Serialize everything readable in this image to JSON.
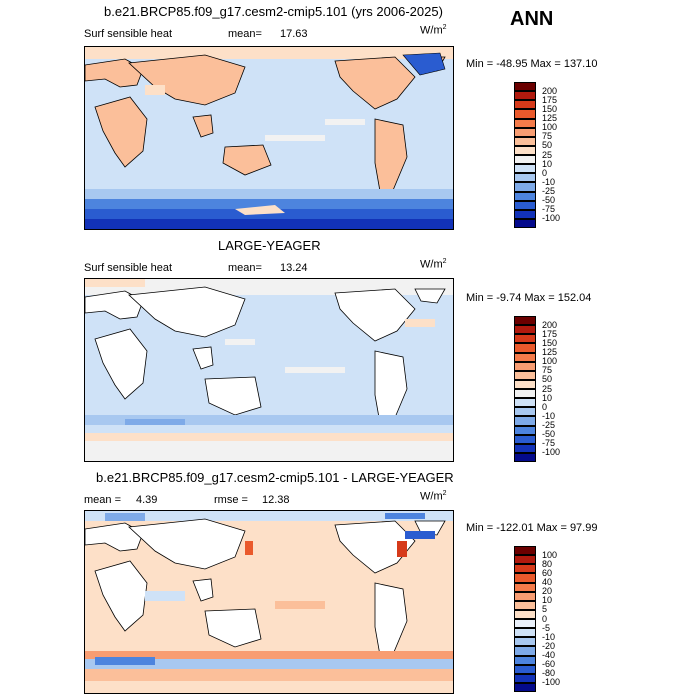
{
  "season": "ANN",
  "units": "W/m",
  "units_exp": "2",
  "panel1": {
    "title": "b.e21.BRCP85.f09_g17.cesm2-cmip5.101 (yrs 2006-2025)",
    "var_label": "Surf sensible heat",
    "mean_label": "mean=",
    "mean_value": "17.63",
    "minmax": "Min = -48.95 Max = 137.10",
    "levels": [
      "200",
      "175",
      "150",
      "125",
      "100",
      "75",
      "50",
      "25",
      "10",
      "0",
      "-10",
      "-25",
      "-50",
      "-75",
      "-100"
    ]
  },
  "panel2": {
    "title": "LARGE-YEAGER",
    "var_label": "Surf sensible heat",
    "mean_label": "mean=",
    "mean_value": "13.24",
    "minmax": "Min = -9.74 Max = 152.04",
    "levels": [
      "200",
      "175",
      "150",
      "125",
      "100",
      "75",
      "50",
      "25",
      "10",
      "0",
      "-10",
      "-25",
      "-50",
      "-75",
      "-100"
    ]
  },
  "panel3": {
    "title": "b.e21.BRCP85.f09_g17.cesm2-cmip5.101 - LARGE-YEAGER",
    "mean_label": "mean =",
    "mean_value": "4.39",
    "rmse_label": "rmse =",
    "rmse_value": "12.38",
    "minmax": "Min = -122.01 Max = 97.99",
    "levels": [
      "100",
      "80",
      "60",
      "40",
      "20",
      "10",
      "5",
      "0",
      "-5",
      "-10",
      "-20",
      "-40",
      "-60",
      "-80",
      "-100"
    ]
  },
  "colors": {
    "abs_scale": [
      "#6b0000",
      "#b01a0e",
      "#d63a1a",
      "#ea5a2c",
      "#f47b4a",
      "#f89d72",
      "#fbbf9a",
      "#fde0c8",
      "#f2f2f2",
      "#cfe2f7",
      "#a8c8f0",
      "#7eaae8",
      "#4d84de",
      "#2a5cd0",
      "#1232b8",
      "#040a8c"
    ],
    "diff_scale": [
      "#6b0000",
      "#b01a0e",
      "#d63a1a",
      "#ea5a2c",
      "#f47b4a",
      "#f89d72",
      "#fbbf9a",
      "#fde0c8",
      "#eaf1fb",
      "#cfe2f7",
      "#a8c8f0",
      "#7eaae8",
      "#4d84de",
      "#2a5cd0",
      "#1232b8",
      "#040a8c"
    ]
  }
}
